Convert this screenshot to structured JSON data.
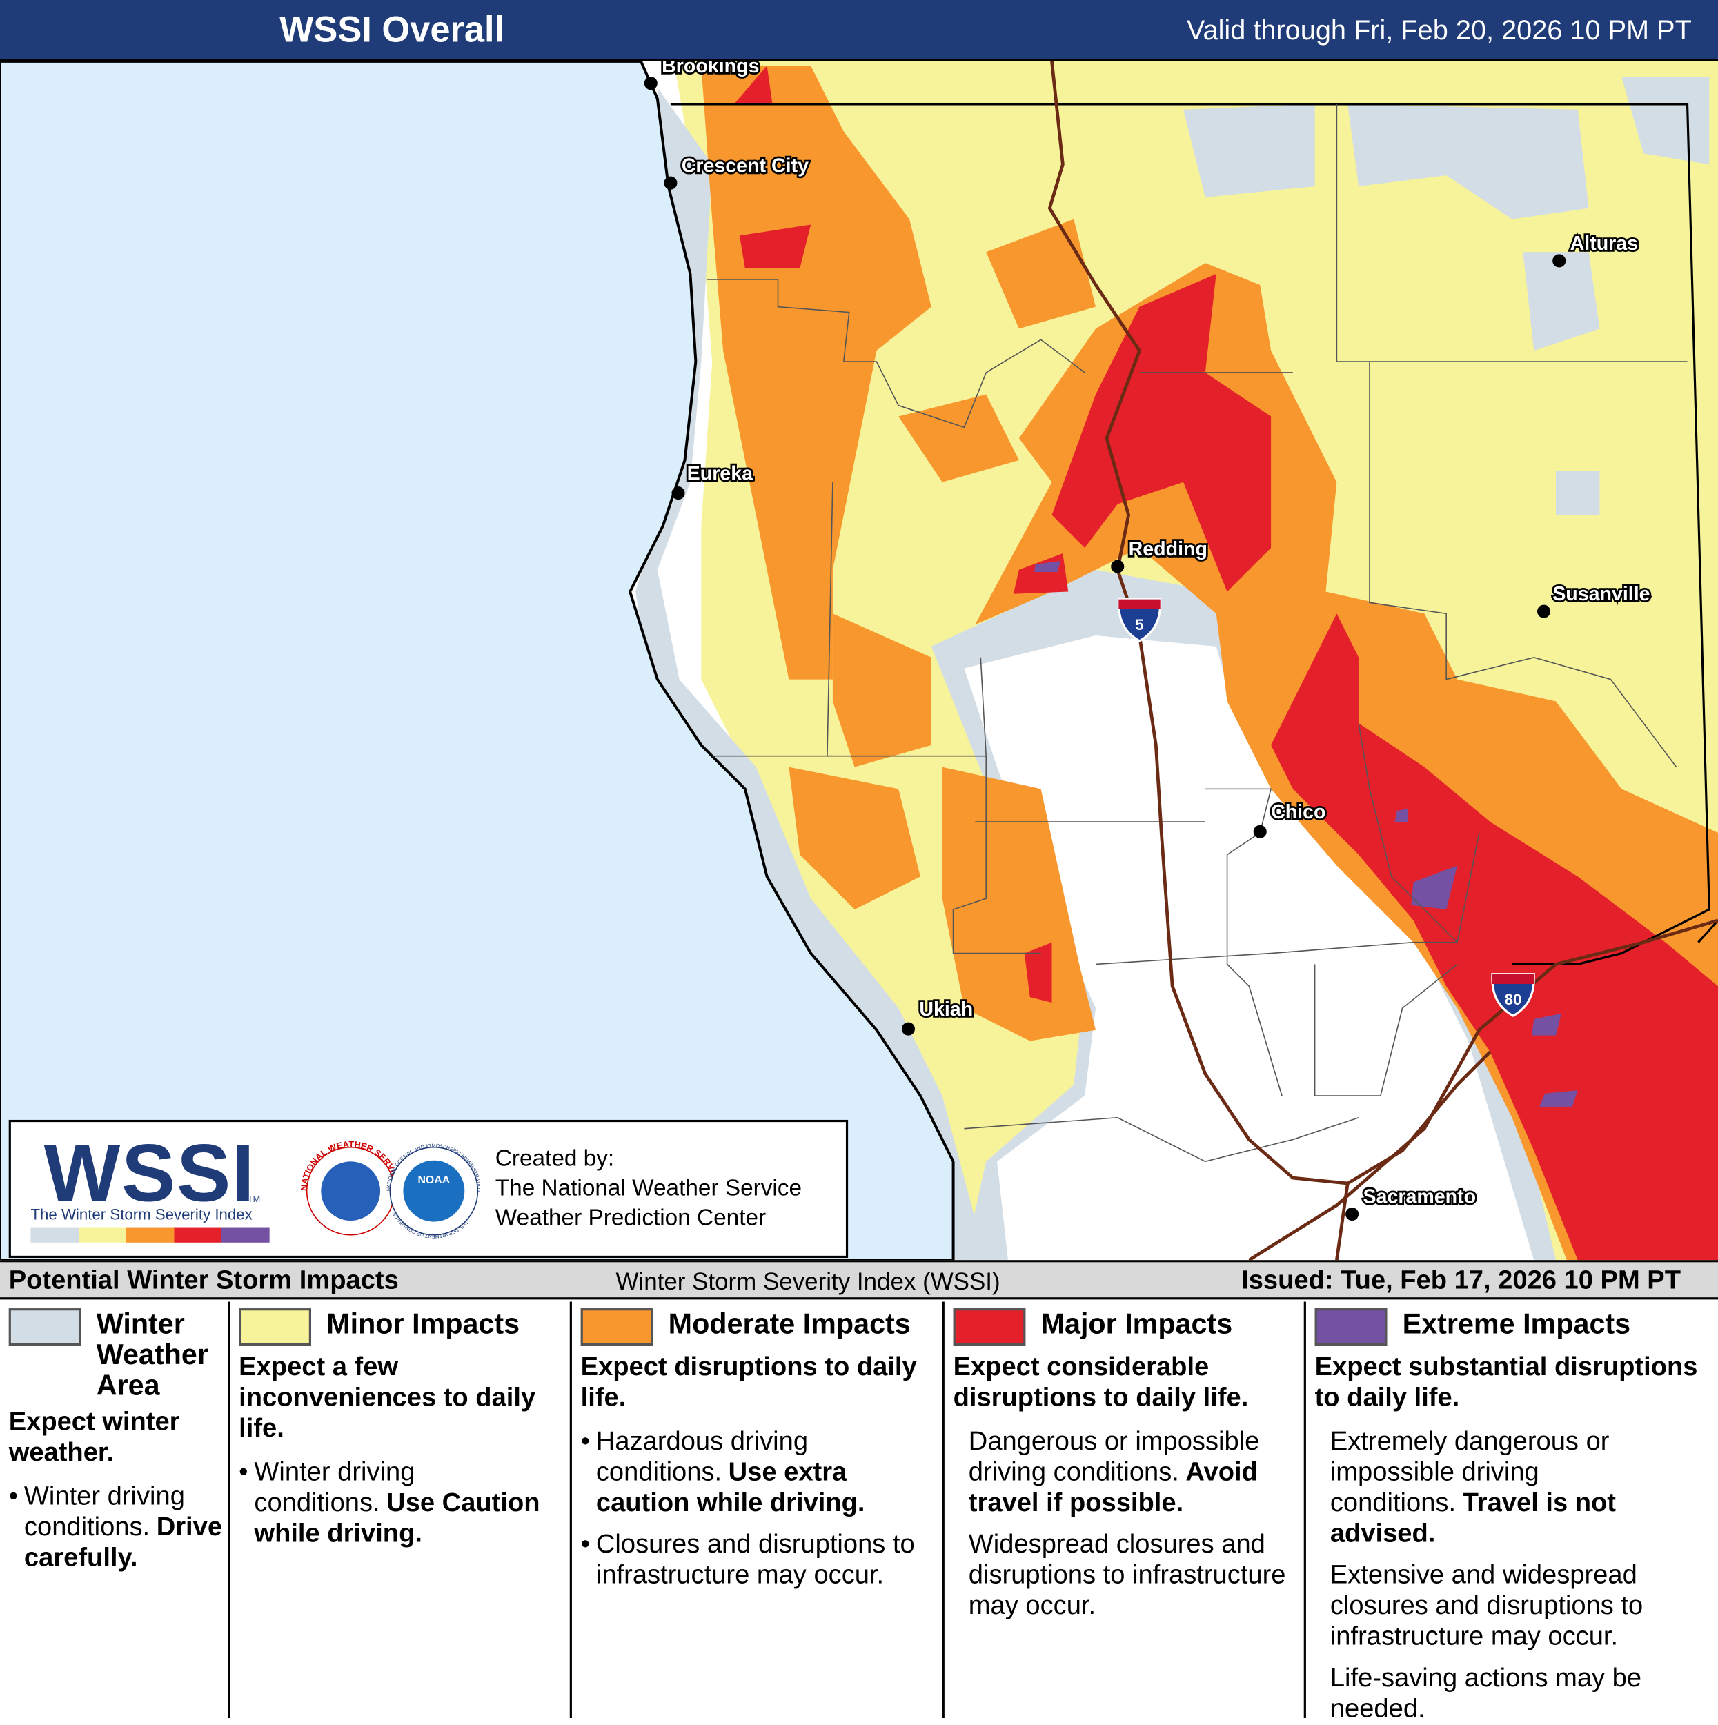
{
  "header": {
    "title": "WSSI Overall",
    "valid": "Valid through Fri, Feb 20, 2026 10 PM PT"
  },
  "map": {
    "cities": [
      {
        "name": "Brookings"
      },
      {
        "name": "Crescent City"
      },
      {
        "name": "Eureka"
      },
      {
        "name": "Redding"
      },
      {
        "name": "Alturas"
      },
      {
        "name": "Susanville"
      },
      {
        "name": "Chico"
      },
      {
        "name": "Ukiah"
      },
      {
        "name": "Sacramento"
      }
    ],
    "highways": [
      "5",
      "80"
    ]
  },
  "logo": {
    "wordmark": "WSSI",
    "trademark": "TM",
    "subtitle": "The Winter Storm Severity Index",
    "nws_ring": "NATIONAL WEATHER SERVICE",
    "noaa": "NOAA",
    "noaa_ring": "NATIONAL OCEANIC AND ATMOSPHERIC ADMINISTRATION",
    "doc_ring": "U.S. DEPARTMENT OF COMMERCE",
    "credit": [
      "Created by:",
      "The National Weather Service",
      "Weather Prediction Center"
    ]
  },
  "legend": {
    "title": "Potential Winter Storm Impacts",
    "index": "Winter Storm Severity Index (WSSI)",
    "issued": "Issued: Tue, Feb 17, 2026 10 PM PT",
    "categories": [
      {
        "name": "Winter Weather Area",
        "color": "#d3dde6",
        "heading": "Expect winter weather.",
        "bullets": true,
        "items": [
          [
            {
              "text": "Winter driving conditions."
            },
            {
              "text": "Drive carefully.",
              "bold": true
            }
          ]
        ]
      },
      {
        "name": "Minor Impacts",
        "color": "#f7f39a",
        "heading": "Expect a few inconveniences to daily life.",
        "bullets": true,
        "items": [
          [
            {
              "text": "Winter driving conditions."
            },
            {
              "text": "Use Caution while driving.",
              "bold": true
            }
          ]
        ]
      },
      {
        "name": "Moderate Impacts",
        "color": "#f7972e",
        "heading": "Expect disruptions to daily life.",
        "bullets": true,
        "items": [
          [
            {
              "text": "Hazardous driving conditions."
            },
            {
              "text": "Use extra caution while driving.",
              "bold": true
            }
          ],
          [
            {
              "text": "Closures and disruptions to infrastructure may occur."
            }
          ]
        ]
      },
      {
        "name": "Major Impacts",
        "color": "#e4202a",
        "heading": "Expect considerable disruptions to daily life.",
        "bullets": false,
        "items": [
          [
            {
              "text": "Dangerous or impossible driving conditions."
            },
            {
              "text": "Avoid travel if possible.",
              "bold": true
            }
          ],
          [
            {
              "text": "Widespread closures and disruptions to infrastructure may occur."
            }
          ]
        ]
      },
      {
        "name": "Extreme Impacts",
        "color": "#7451a3",
        "heading": "Expect substantial disruptions to daily life.",
        "bullets": false,
        "items": [
          [
            {
              "text": "Extremely dangerous or impossible driving conditions."
            },
            {
              "text": "Travel is not advised.",
              "bold": true
            }
          ],
          [
            {
              "text": "Extensive and widespread closures and disruptions to infrastructure may occur."
            }
          ],
          [
            {
              "text": "Life-saving actions may be needed."
            }
          ]
        ]
      }
    ]
  }
}
